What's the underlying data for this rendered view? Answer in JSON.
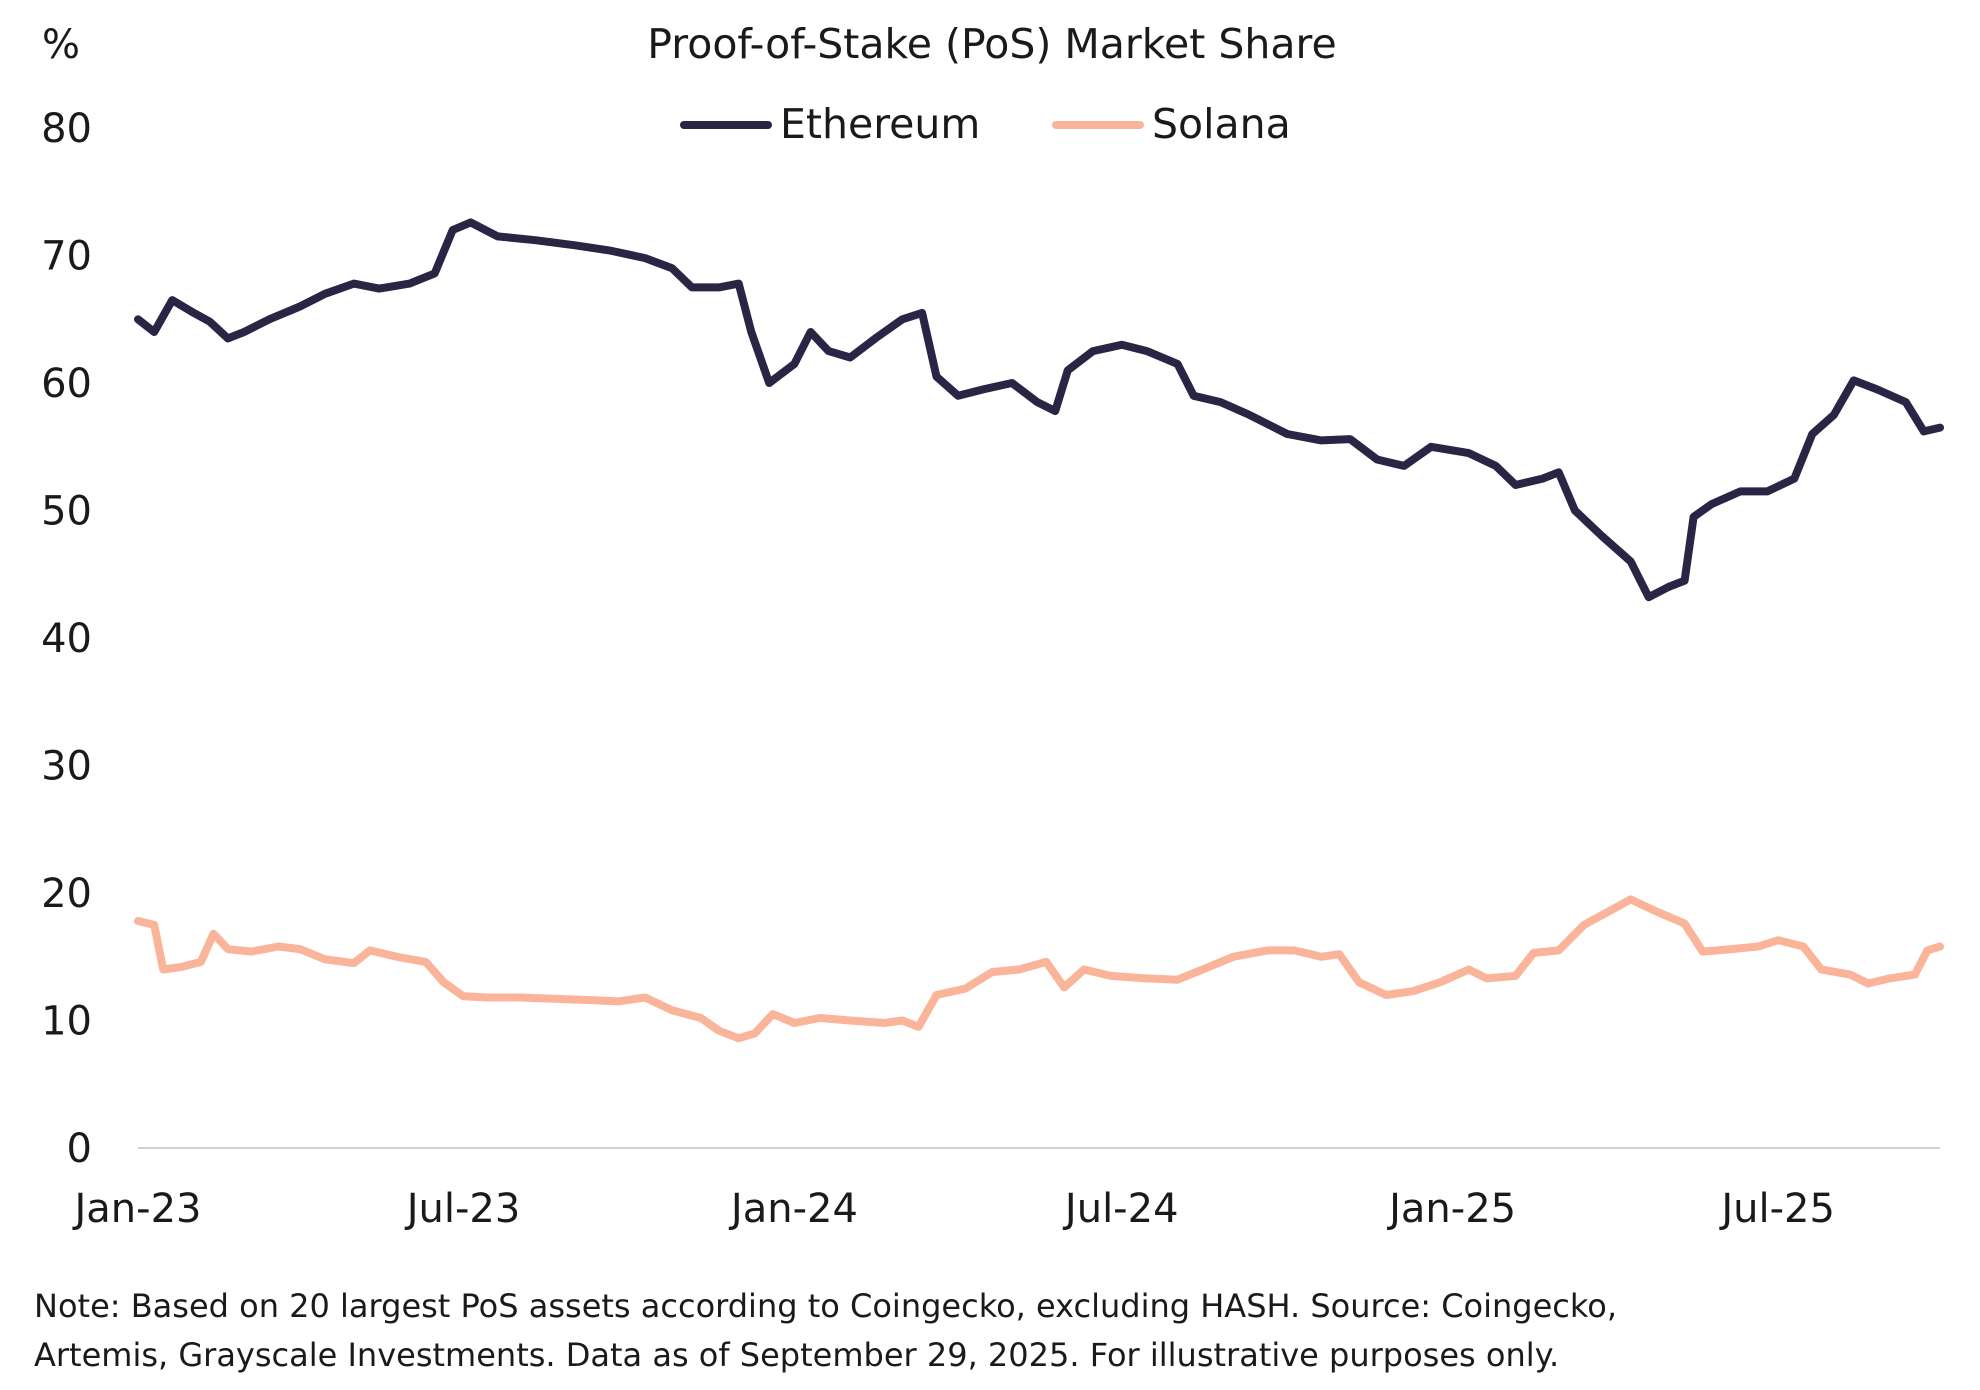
{
  "chart_data": {
    "type": "line",
    "title": "Proof-of-Stake (PoS) Market Share",
    "ylabel": "%",
    "xlabel": "",
    "ylim": [
      0,
      80
    ],
    "yticks": [
      0,
      10,
      20,
      30,
      40,
      50,
      60,
      70,
      80
    ],
    "xlim": [
      "2023-01",
      "2025-09"
    ],
    "xticks": [
      "Jan-23",
      "Jul-23",
      "Jan-24",
      "Jul-24",
      "Jan-25",
      "Jul-25"
    ],
    "legend_position": "top-center",
    "grid": false,
    "series": [
      {
        "name": "Ethereum",
        "color": "#2b2444",
        "points": [
          [
            "2023-01-01",
            65
          ],
          [
            "2023-01-10",
            64
          ],
          [
            "2023-01-20",
            66.5
          ],
          [
            "2023-02-01",
            65.5
          ],
          [
            "2023-02-10",
            64.8
          ],
          [
            "2023-02-20",
            63.5
          ],
          [
            "2023-03-01",
            64
          ],
          [
            "2023-03-15",
            65
          ],
          [
            "2023-04-01",
            66
          ],
          [
            "2023-04-15",
            67
          ],
          [
            "2023-05-01",
            67.8
          ],
          [
            "2023-05-15",
            67.4
          ],
          [
            "2023-06-01",
            67.8
          ],
          [
            "2023-06-15",
            68.6
          ],
          [
            "2023-06-25",
            72
          ],
          [
            "2023-07-05",
            72.6
          ],
          [
            "2023-07-20",
            71.5
          ],
          [
            "2023-08-10",
            71.2
          ],
          [
            "2023-09-01",
            70.8
          ],
          [
            "2023-09-20",
            70.4
          ],
          [
            "2023-10-10",
            69.8
          ],
          [
            "2023-10-25",
            69
          ],
          [
            "2023-11-05",
            67.5
          ],
          [
            "2023-11-20",
            67.5
          ],
          [
            "2023-12-01",
            67.8
          ],
          [
            "2023-12-08",
            64
          ],
          [
            "2023-12-18",
            60
          ],
          [
            "2024-01-01",
            61.5
          ],
          [
            "2024-01-10",
            64
          ],
          [
            "2024-01-20",
            62.5
          ],
          [
            "2024-02-01",
            62
          ],
          [
            "2024-02-15",
            63.5
          ],
          [
            "2024-03-01",
            65
          ],
          [
            "2024-03-12",
            65.5
          ],
          [
            "2024-03-20",
            60.5
          ],
          [
            "2024-04-01",
            59
          ],
          [
            "2024-04-15",
            59.5
          ],
          [
            "2024-05-01",
            60
          ],
          [
            "2024-05-15",
            58.5
          ],
          [
            "2024-05-25",
            57.8
          ],
          [
            "2024-06-01",
            61
          ],
          [
            "2024-06-15",
            62.5
          ],
          [
            "2024-07-01",
            63
          ],
          [
            "2024-07-15",
            62.5
          ],
          [
            "2024-08-01",
            61.5
          ],
          [
            "2024-08-10",
            59
          ],
          [
            "2024-08-25",
            58.5
          ],
          [
            "2024-09-10",
            57.5
          ],
          [
            "2024-10-01",
            56
          ],
          [
            "2024-10-20",
            55.5
          ],
          [
            "2024-11-05",
            55.6
          ],
          [
            "2024-11-20",
            54
          ],
          [
            "2024-12-05",
            53.5
          ],
          [
            "2024-12-20",
            55
          ],
          [
            "2025-01-10",
            54.5
          ],
          [
            "2025-01-25",
            53.5
          ],
          [
            "2025-02-05",
            52
          ],
          [
            "2025-02-20",
            52.5
          ],
          [
            "2025-03-01",
            53
          ],
          [
            "2025-03-10",
            50
          ],
          [
            "2025-03-25",
            48
          ],
          [
            "2025-04-10",
            46
          ],
          [
            "2025-04-20",
            43.2
          ],
          [
            "2025-05-01",
            44
          ],
          [
            "2025-05-10",
            44.5
          ],
          [
            "2025-05-15",
            49.5
          ],
          [
            "2025-05-25",
            50.5
          ],
          [
            "2025-06-10",
            51.5
          ],
          [
            "2025-06-25",
            51.5
          ],
          [
            "2025-07-10",
            52.5
          ],
          [
            "2025-07-20",
            56
          ],
          [
            "2025-08-01",
            57.5
          ],
          [
            "2025-08-12",
            60.2
          ],
          [
            "2025-08-25",
            59.5
          ],
          [
            "2025-09-10",
            58.5
          ],
          [
            "2025-09-20",
            56.2
          ],
          [
            "2025-09-29",
            56.5
          ]
        ]
      },
      {
        "name": "Solana",
        "color": "#f9b49a",
        "points": [
          [
            "2023-01-01",
            17.8
          ],
          [
            "2023-01-10",
            17.5
          ],
          [
            "2023-01-15",
            14
          ],
          [
            "2023-01-25",
            14.2
          ],
          [
            "2023-02-05",
            14.6
          ],
          [
            "2023-02-12",
            16.8
          ],
          [
            "2023-02-20",
            15.6
          ],
          [
            "2023-03-05",
            15.4
          ],
          [
            "2023-03-20",
            15.8
          ],
          [
            "2023-04-01",
            15.6
          ],
          [
            "2023-04-15",
            14.8
          ],
          [
            "2023-05-01",
            14.5
          ],
          [
            "2023-05-10",
            15.5
          ],
          [
            "2023-05-25",
            15
          ],
          [
            "2023-06-10",
            14.6
          ],
          [
            "2023-06-20",
            13
          ],
          [
            "2023-07-01",
            11.9
          ],
          [
            "2023-07-15",
            11.8
          ],
          [
            "2023-08-01",
            11.8
          ],
          [
            "2023-08-20",
            11.7
          ],
          [
            "2023-09-10",
            11.6
          ],
          [
            "2023-09-25",
            11.5
          ],
          [
            "2023-10-10",
            11.8
          ],
          [
            "2023-10-25",
            10.8
          ],
          [
            "2023-11-10",
            10.2
          ],
          [
            "2023-11-20",
            9.2
          ],
          [
            "2023-12-01",
            8.6
          ],
          [
            "2023-12-10",
            9
          ],
          [
            "2023-12-20",
            10.5
          ],
          [
            "2024-01-01",
            9.8
          ],
          [
            "2024-01-15",
            10.2
          ],
          [
            "2024-02-01",
            10
          ],
          [
            "2024-02-20",
            9.8
          ],
          [
            "2024-03-01",
            10
          ],
          [
            "2024-03-10",
            9.5
          ],
          [
            "2024-03-20",
            12
          ],
          [
            "2024-04-05",
            12.5
          ],
          [
            "2024-04-20",
            13.8
          ],
          [
            "2024-05-05",
            14
          ],
          [
            "2024-05-20",
            14.6
          ],
          [
            "2024-05-30",
            12.6
          ],
          [
            "2024-06-10",
            14
          ],
          [
            "2024-06-25",
            13.5
          ],
          [
            "2024-07-15",
            13.3
          ],
          [
            "2024-08-01",
            13.2
          ],
          [
            "2024-08-15",
            14
          ],
          [
            "2024-09-01",
            15
          ],
          [
            "2024-09-20",
            15.5
          ],
          [
            "2024-10-05",
            15.5
          ],
          [
            "2024-10-20",
            15
          ],
          [
            "2024-10-30",
            15.2
          ],
          [
            "2024-11-10",
            13
          ],
          [
            "2024-11-25",
            12
          ],
          [
            "2024-12-10",
            12.3
          ],
          [
            "2024-12-25",
            13
          ],
          [
            "2025-01-10",
            14
          ],
          [
            "2025-01-20",
            13.3
          ],
          [
            "2025-02-05",
            13.5
          ],
          [
            "2025-02-15",
            15.3
          ],
          [
            "2025-03-01",
            15.5
          ],
          [
            "2025-03-15",
            17.5
          ],
          [
            "2025-04-01",
            18.8
          ],
          [
            "2025-04-10",
            19.5
          ],
          [
            "2025-04-25",
            18.5
          ],
          [
            "2025-05-10",
            17.6
          ],
          [
            "2025-05-20",
            15.4
          ],
          [
            "2025-06-05",
            15.6
          ],
          [
            "2025-06-20",
            15.8
          ],
          [
            "2025-07-01",
            16.3
          ],
          [
            "2025-07-15",
            15.8
          ],
          [
            "2025-07-25",
            14
          ],
          [
            "2025-08-10",
            13.6
          ],
          [
            "2025-08-20",
            12.9
          ],
          [
            "2025-09-01",
            13.3
          ],
          [
            "2025-09-15",
            13.6
          ],
          [
            "2025-09-22",
            15.5
          ],
          [
            "2025-09-29",
            15.8
          ]
        ]
      }
    ]
  },
  "note": {
    "line1": "Note: Based on 20 largest PoS assets according to Coingecko, excluding HASH. Source: Coingecko,",
    "line2": "Artemis, Grayscale Investments. Data as of September 29, 2025. For illustrative purposes only."
  }
}
